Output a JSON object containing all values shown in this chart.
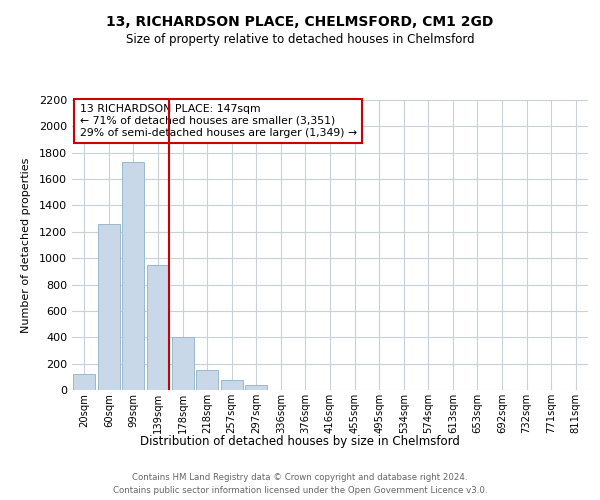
{
  "title1": "13, RICHARDSON PLACE, CHELMSFORD, CM1 2GD",
  "title2": "Size of property relative to detached houses in Chelmsford",
  "xlabel": "Distribution of detached houses by size in Chelmsford",
  "ylabel": "Number of detached properties",
  "bar_labels": [
    "20sqm",
    "60sqm",
    "99sqm",
    "139sqm",
    "178sqm",
    "218sqm",
    "257sqm",
    "297sqm",
    "336sqm",
    "376sqm",
    "416sqm",
    "455sqm",
    "495sqm",
    "534sqm",
    "574sqm",
    "613sqm",
    "653sqm",
    "692sqm",
    "732sqm",
    "771sqm",
    "811sqm"
  ],
  "bar_values": [
    120,
    1260,
    1730,
    950,
    405,
    150,
    75,
    35,
    0,
    0,
    0,
    0,
    0,
    0,
    0,
    0,
    0,
    0,
    0,
    0,
    0
  ],
  "bar_color": "#c8d8e8",
  "bar_edgecolor": "#9ab8cc",
  "marker_bar_index": 3,
  "marker_color": "#cc0000",
  "annotation_title": "13 RICHARDSON PLACE: 147sqm",
  "annotation_line1": "← 71% of detached houses are smaller (3,351)",
  "annotation_line2": "29% of semi-detached houses are larger (1,349) →",
  "ylim": [
    0,
    2200
  ],
  "yticks": [
    0,
    200,
    400,
    600,
    800,
    1000,
    1200,
    1400,
    1600,
    1800,
    2000,
    2200
  ],
  "footer1": "Contains HM Land Registry data © Crown copyright and database right 2024.",
  "footer2": "Contains public sector information licensed under the Open Government Licence v3.0.",
  "bg_color": "#ffffff",
  "grid_color": "#c8d0d8"
}
